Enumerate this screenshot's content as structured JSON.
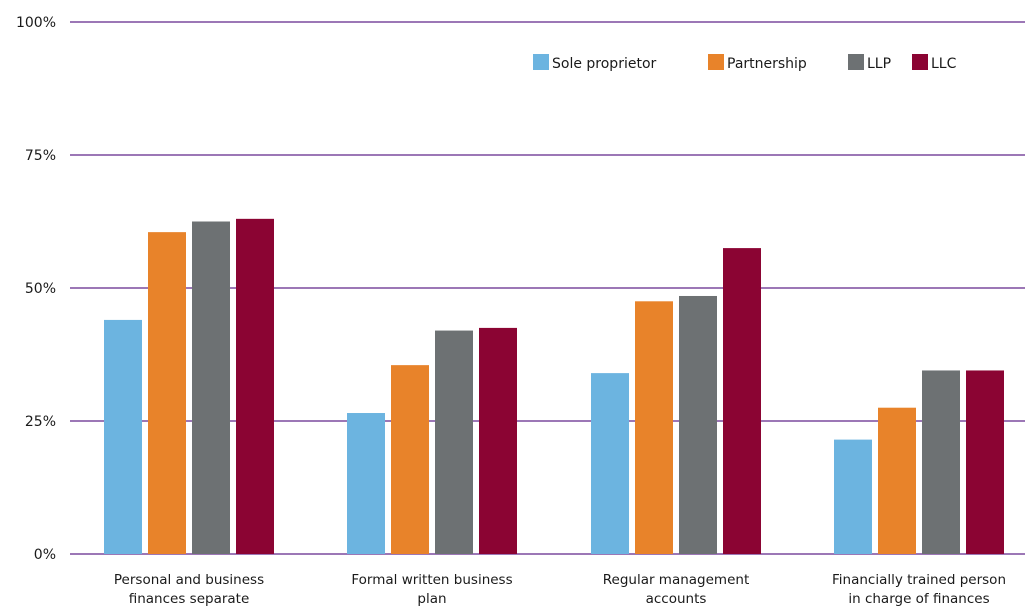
{
  "chart_data": {
    "type": "bar",
    "title": "",
    "xlabel": "",
    "ylabel": "",
    "ylim": [
      0,
      100
    ],
    "y_ticks": [
      "0%",
      "25%",
      "50%",
      "75%",
      "100%"
    ],
    "grid": true,
    "legend_position": "top-right",
    "categories": [
      [
        "Personal and business",
        "finances separate"
      ],
      [
        "Formal written business",
        "plan"
      ],
      [
        "Regular management",
        "accounts"
      ],
      [
        "Financially trained person",
        "in charge of finances"
      ]
    ],
    "series": [
      {
        "name": "Sole proprietor",
        "color": "#6cb4e0",
        "values": [
          44,
          26.5,
          34,
          21.5
        ]
      },
      {
        "name": "Partnership",
        "color": "#e8832a",
        "values": [
          60.5,
          35.5,
          47.5,
          27.5
        ]
      },
      {
        "name": "LLP",
        "color": "#6d7173",
        "values": [
          62.5,
          42,
          48.5,
          34.5
        ]
      },
      {
        "name": "LLC",
        "color": "#8b0433",
        "values": [
          63,
          42.5,
          57.5,
          34.5
        ]
      }
    ],
    "gridline_color": "#7b4a9e"
  }
}
